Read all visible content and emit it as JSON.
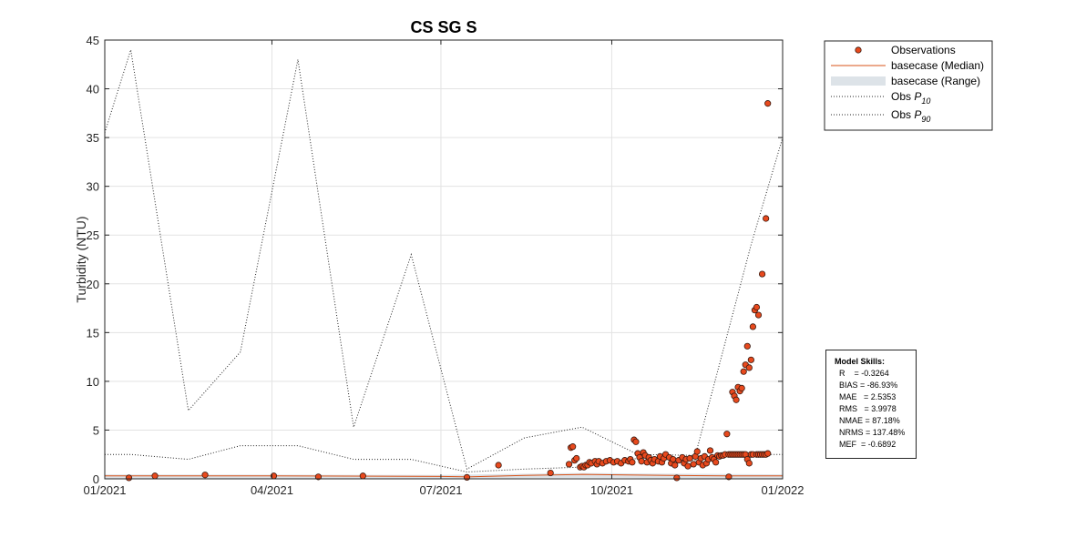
{
  "chart_data": {
    "type": "scatter",
    "title": "CS SG S",
    "xlabel": "",
    "ylabel": "Turbidity (NTU)",
    "x_ticks": [
      "01/2021",
      "04/2021",
      "07/2021",
      "10/2021",
      "01/2022"
    ],
    "xlim": [
      "2021-01-01",
      "2022-01-01"
    ],
    "y_ticks": [
      "0",
      "5",
      "10",
      "15",
      "20",
      "25",
      "30",
      "35",
      "40",
      "45"
    ],
    "ylim": [
      0,
      45
    ],
    "grid": true,
    "legend_position": "outside-top-right",
    "legend": [
      {
        "label": "Observations",
        "kind": "marker"
      },
      {
        "label": "basecase (Median)",
        "kind": "line"
      },
      {
        "label": "basecase (Range)",
        "kind": "patch"
      },
      {
        "label": "Obs P",
        "sub": "10",
        "kind": "dotted"
      },
      {
        "label": "Obs P",
        "sub": "90",
        "kind": "dotted"
      }
    ],
    "series": [
      {
        "name": "Observations",
        "color": "#e8491d",
        "points": [
          [
            "2021-01-14",
            0.1
          ],
          [
            "2021-01-28",
            0.3
          ],
          [
            "2021-02-24",
            0.4
          ],
          [
            "2021-04-02",
            0.3
          ],
          [
            "2021-04-26",
            0.2
          ],
          [
            "2021-05-20",
            0.3
          ],
          [
            "2021-07-15",
            0.15
          ],
          [
            "2021-08-01",
            1.4
          ],
          [
            "2021-08-29",
            0.6
          ],
          [
            "2021-09-08",
            1.5
          ],
          [
            "2021-09-09",
            3.2
          ],
          [
            "2021-09-10",
            3.3
          ],
          [
            "2021-09-11",
            1.9
          ],
          [
            "2021-09-12",
            2.1
          ],
          [
            "2021-09-14",
            1.2
          ],
          [
            "2021-09-15",
            1.3
          ],
          [
            "2021-09-16",
            1.2
          ],
          [
            "2021-09-17",
            1.4
          ],
          [
            "2021-09-18",
            1.4
          ],
          [
            "2021-09-19",
            1.7
          ],
          [
            "2021-09-20",
            1.6
          ],
          [
            "2021-09-22",
            1.8
          ],
          [
            "2021-09-23",
            1.5
          ],
          [
            "2021-09-24",
            1.8
          ],
          [
            "2021-09-26",
            1.6
          ],
          [
            "2021-09-28",
            1.8
          ],
          [
            "2021-09-30",
            1.9
          ],
          [
            "2021-10-02",
            1.7
          ],
          [
            "2021-10-04",
            1.8
          ],
          [
            "2021-10-06",
            1.6
          ],
          [
            "2021-10-08",
            1.9
          ],
          [
            "2021-10-10",
            1.8
          ],
          [
            "2021-10-11",
            2.0
          ],
          [
            "2021-10-12",
            1.7
          ],
          [
            "2021-10-13",
            4.0
          ],
          [
            "2021-10-14",
            3.8
          ],
          [
            "2021-10-15",
            2.6
          ],
          [
            "2021-10-16",
            2.2
          ],
          [
            "2021-10-17",
            1.8
          ],
          [
            "2021-10-18",
            2.7
          ],
          [
            "2021-10-19",
            2.4
          ],
          [
            "2021-10-20",
            1.7
          ],
          [
            "2021-10-21",
            2.2
          ],
          [
            "2021-10-22",
            1.9
          ],
          [
            "2021-10-23",
            1.6
          ],
          [
            "2021-10-24",
            2.0
          ],
          [
            "2021-10-26",
            1.8
          ],
          [
            "2021-10-27",
            2.3
          ],
          [
            "2021-10-28",
            1.7
          ],
          [
            "2021-10-29",
            2.1
          ],
          [
            "2021-10-30",
            2.5
          ],
          [
            "2021-11-01",
            2.2
          ],
          [
            "2021-11-02",
            1.6
          ],
          [
            "2021-11-03",
            2.0
          ],
          [
            "2021-11-04",
            1.4
          ],
          [
            "2021-11-05",
            0.1
          ],
          [
            "2021-11-06",
            1.9
          ],
          [
            "2021-11-08",
            2.2
          ],
          [
            "2021-11-09",
            1.6
          ],
          [
            "2021-11-10",
            2.0
          ],
          [
            "2021-11-11",
            1.3
          ],
          [
            "2021-11-12",
            2.1
          ],
          [
            "2021-11-14",
            1.5
          ],
          [
            "2021-11-15",
            2.3
          ],
          [
            "2021-11-16",
            2.8
          ],
          [
            "2021-11-17",
            1.7
          ],
          [
            "2021-11-18",
            2.1
          ],
          [
            "2021-11-19",
            1.4
          ],
          [
            "2021-11-20",
            2.3
          ],
          [
            "2021-11-21",
            1.6
          ],
          [
            "2021-11-22",
            2.0
          ],
          [
            "2021-11-23",
            2.9
          ],
          [
            "2021-11-24",
            2.2
          ],
          [
            "2021-11-25",
            2.0
          ],
          [
            "2021-11-26",
            1.7
          ],
          [
            "2021-11-27",
            2.4
          ],
          [
            "2021-11-28",
            2.3
          ],
          [
            "2021-11-29",
            2.4
          ],
          [
            "2021-11-30",
            2.4
          ],
          [
            "2021-12-01",
            2.5
          ],
          [
            "2021-12-02",
            4.6
          ],
          [
            "2021-12-03",
            0.2
          ],
          [
            "2021-12-03",
            2.5
          ],
          [
            "2021-12-04",
            2.5
          ],
          [
            "2021-12-05",
            8.9
          ],
          [
            "2021-12-05",
            2.5
          ],
          [
            "2021-12-06",
            8.5
          ],
          [
            "2021-12-06",
            2.5
          ],
          [
            "2021-12-07",
            8.1
          ],
          [
            "2021-12-07",
            2.5
          ],
          [
            "2021-12-08",
            9.4
          ],
          [
            "2021-12-08",
            2.5
          ],
          [
            "2021-12-09",
            9.0
          ],
          [
            "2021-12-09",
            2.5
          ],
          [
            "2021-12-10",
            9.3
          ],
          [
            "2021-12-10",
            2.5
          ],
          [
            "2021-12-11",
            11.0
          ],
          [
            "2021-12-11",
            2.5
          ],
          [
            "2021-12-12",
            11.7
          ],
          [
            "2021-12-12",
            2.5
          ],
          [
            "2021-12-13",
            13.6
          ],
          [
            "2021-12-13",
            2.0
          ],
          [
            "2021-12-14",
            11.4
          ],
          [
            "2021-12-14",
            1.6
          ],
          [
            "2021-12-15",
            12.2
          ],
          [
            "2021-12-15",
            2.5
          ],
          [
            "2021-12-16",
            15.6
          ],
          [
            "2021-12-16",
            2.5
          ],
          [
            "2021-12-17",
            17.3
          ],
          [
            "2021-12-18",
            17.6
          ],
          [
            "2021-12-18",
            2.5
          ],
          [
            "2021-12-19",
            16.8
          ],
          [
            "2021-12-19",
            2.5
          ],
          [
            "2021-12-20",
            2.5
          ],
          [
            "2021-12-21",
            21.0
          ],
          [
            "2021-12-21",
            2.5
          ],
          [
            "2021-12-22",
            2.5
          ],
          [
            "2021-12-23",
            26.7
          ],
          [
            "2021-12-23",
            2.5
          ],
          [
            "2021-12-24",
            38.5
          ],
          [
            "2021-12-24",
            2.6
          ]
        ]
      },
      {
        "name": "basecase (Median)",
        "color": "#d95319",
        "points": [
          [
            "2021-01-01",
            0.3
          ],
          [
            "2021-04-01",
            0.3
          ],
          [
            "2021-07-01",
            0.25
          ],
          [
            "2021-07-15",
            0.2
          ],
          [
            "2021-08-15",
            0.35
          ],
          [
            "2021-09-15",
            0.45
          ],
          [
            "2021-10-10",
            0.4
          ],
          [
            "2021-11-01",
            0.35
          ],
          [
            "2021-12-01",
            0.3
          ],
          [
            "2022-01-01",
            0.3
          ]
        ]
      },
      {
        "name": "basecase (Range)",
        "color": "#dde3e8",
        "lower": [
          [
            "2021-01-01",
            0.05
          ],
          [
            "2021-07-01",
            0.05
          ],
          [
            "2021-09-15",
            0.1
          ],
          [
            "2022-01-01",
            0.05
          ]
        ],
        "upper": [
          [
            "2021-01-01",
            0.45
          ],
          [
            "2021-07-01",
            0.4
          ],
          [
            "2021-09-15",
            0.6
          ],
          [
            "2021-10-15",
            0.55
          ],
          [
            "2022-01-01",
            0.45
          ]
        ]
      },
      {
        "name": "Obs P10",
        "color": "#262626",
        "points": [
          [
            "2021-01-01",
            2.5
          ],
          [
            "2021-01-15",
            2.5
          ],
          [
            "2021-02-15",
            2.0
          ],
          [
            "2021-03-15",
            3.4
          ],
          [
            "2021-04-15",
            3.4
          ],
          [
            "2021-05-15",
            2.0
          ],
          [
            "2021-06-15",
            2.0
          ],
          [
            "2021-07-15",
            0.7
          ],
          [
            "2021-08-15",
            1.0
          ],
          [
            "2021-09-15",
            1.2
          ],
          [
            "2021-10-15",
            2.1
          ],
          [
            "2021-11-15",
            1.9
          ],
          [
            "2021-12-15",
            2.5
          ],
          [
            "2022-01-01",
            2.5
          ]
        ]
      },
      {
        "name": "Obs P90",
        "color": "#262626",
        "points": [
          [
            "2021-01-01",
            35.5
          ],
          [
            "2021-01-15",
            44.0
          ],
          [
            "2021-02-15",
            7.0
          ],
          [
            "2021-03-15",
            13.0
          ],
          [
            "2021-04-15",
            43.0
          ],
          [
            "2021-05-15",
            5.3
          ],
          [
            "2021-06-15",
            23.0
          ],
          [
            "2021-07-15",
            1.0
          ],
          [
            "2021-08-15",
            4.2
          ],
          [
            "2021-09-15",
            5.3
          ],
          [
            "2021-10-15",
            2.5
          ],
          [
            "2021-11-15",
            2.4
          ],
          [
            "2021-12-15",
            24.0
          ],
          [
            "2022-01-01",
            35.0
          ]
        ]
      }
    ]
  },
  "skills": {
    "title": "Model Skills:",
    "lines": [
      "R    = -0.3264",
      "BIAS = -86.93%",
      "MAE   = 2.5353",
      "RMS   = 3.9978",
      "NMAE = 87.18%",
      "NRMS = 137.48%",
      "MEF  = -0.6892"
    ]
  }
}
